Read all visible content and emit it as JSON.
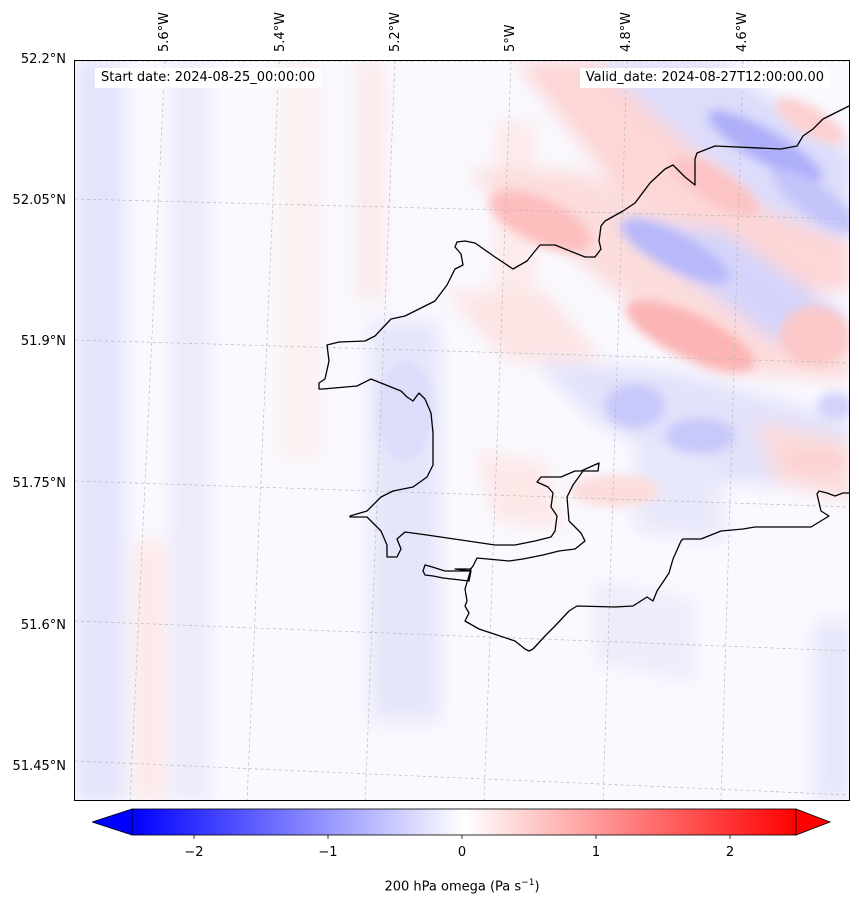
{
  "header": {
    "start_date": "Start date: 2024-08-25_00:00:00",
    "valid_date": "Valid_date: 2024-08-27T12:00:00.00"
  },
  "axes": {
    "lat_labels": [
      "52.2°N",
      "52.05°N",
      "51.9°N",
      "51.75°N",
      "51.6°N",
      "51.45°N"
    ],
    "lon_labels": [
      "5.6°W",
      "5.4°W",
      "5.2°W",
      "5°W",
      "4.8°W",
      "4.6°W"
    ]
  },
  "colorbar": {
    "ticks": [
      "−2",
      "−1",
      "0",
      "1",
      "2"
    ],
    "label": "200 hPa omega (Pa s",
    "label_sup": "−1",
    "label_end": ")",
    "range": [
      -2.5,
      2.5
    ],
    "colormap": "bwr",
    "extend": "both"
  },
  "colors": {
    "coastline": "#000000",
    "negative": "#0000ff",
    "positive": "#ff0000",
    "neutral": "#ffffff",
    "gridline": "#b0b0b0"
  }
}
